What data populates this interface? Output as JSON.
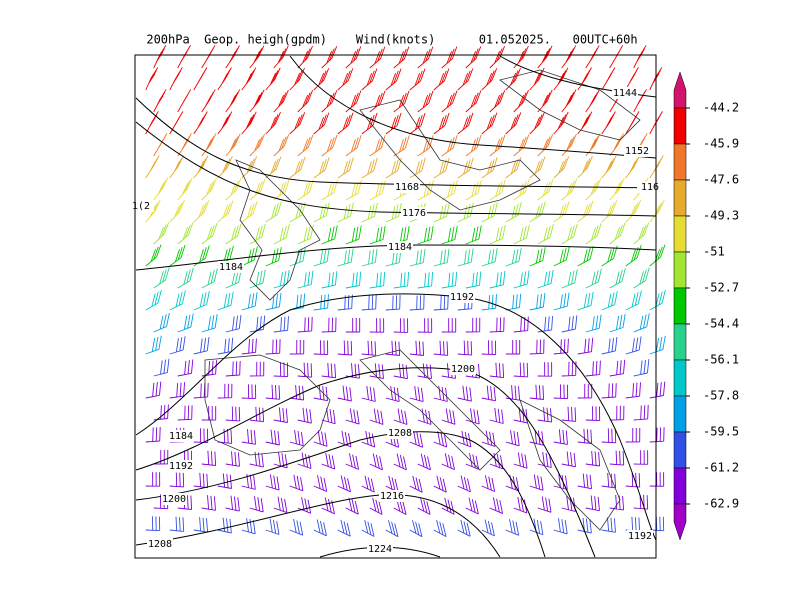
{
  "header": {
    "title": "200hPa  Geop. heigh(gpdm)    Wind(knots)      01.052025.   00UTC+60h"
  },
  "map": {
    "contour_labels": [
      "1144",
      "1152",
      "116",
      "1168",
      "1176",
      "1184",
      "1184",
      "1192",
      "1200",
      "1208",
      "1216",
      "1224",
      "1192",
      "1184",
      "1192",
      "1200",
      "1208",
      "1(2"
    ]
  },
  "colorbar": {
    "labels": [
      "-44.2",
      "-45.9",
      "-47.6",
      "-49.3",
      "-51",
      "-52.7",
      "-54.4",
      "-56.1",
      "-57.8",
      "-59.5",
      "-61.2",
      "-62.9"
    ],
    "colors": [
      "#d2146e",
      "#f00000",
      "#f07828",
      "#e6aa2d",
      "#e6dc32",
      "#a0e632",
      "#00c800",
      "#28d28c",
      "#00c8c8",
      "#00a0e6",
      "#3250e6",
      "#8200dc",
      "#a000c8"
    ]
  }
}
